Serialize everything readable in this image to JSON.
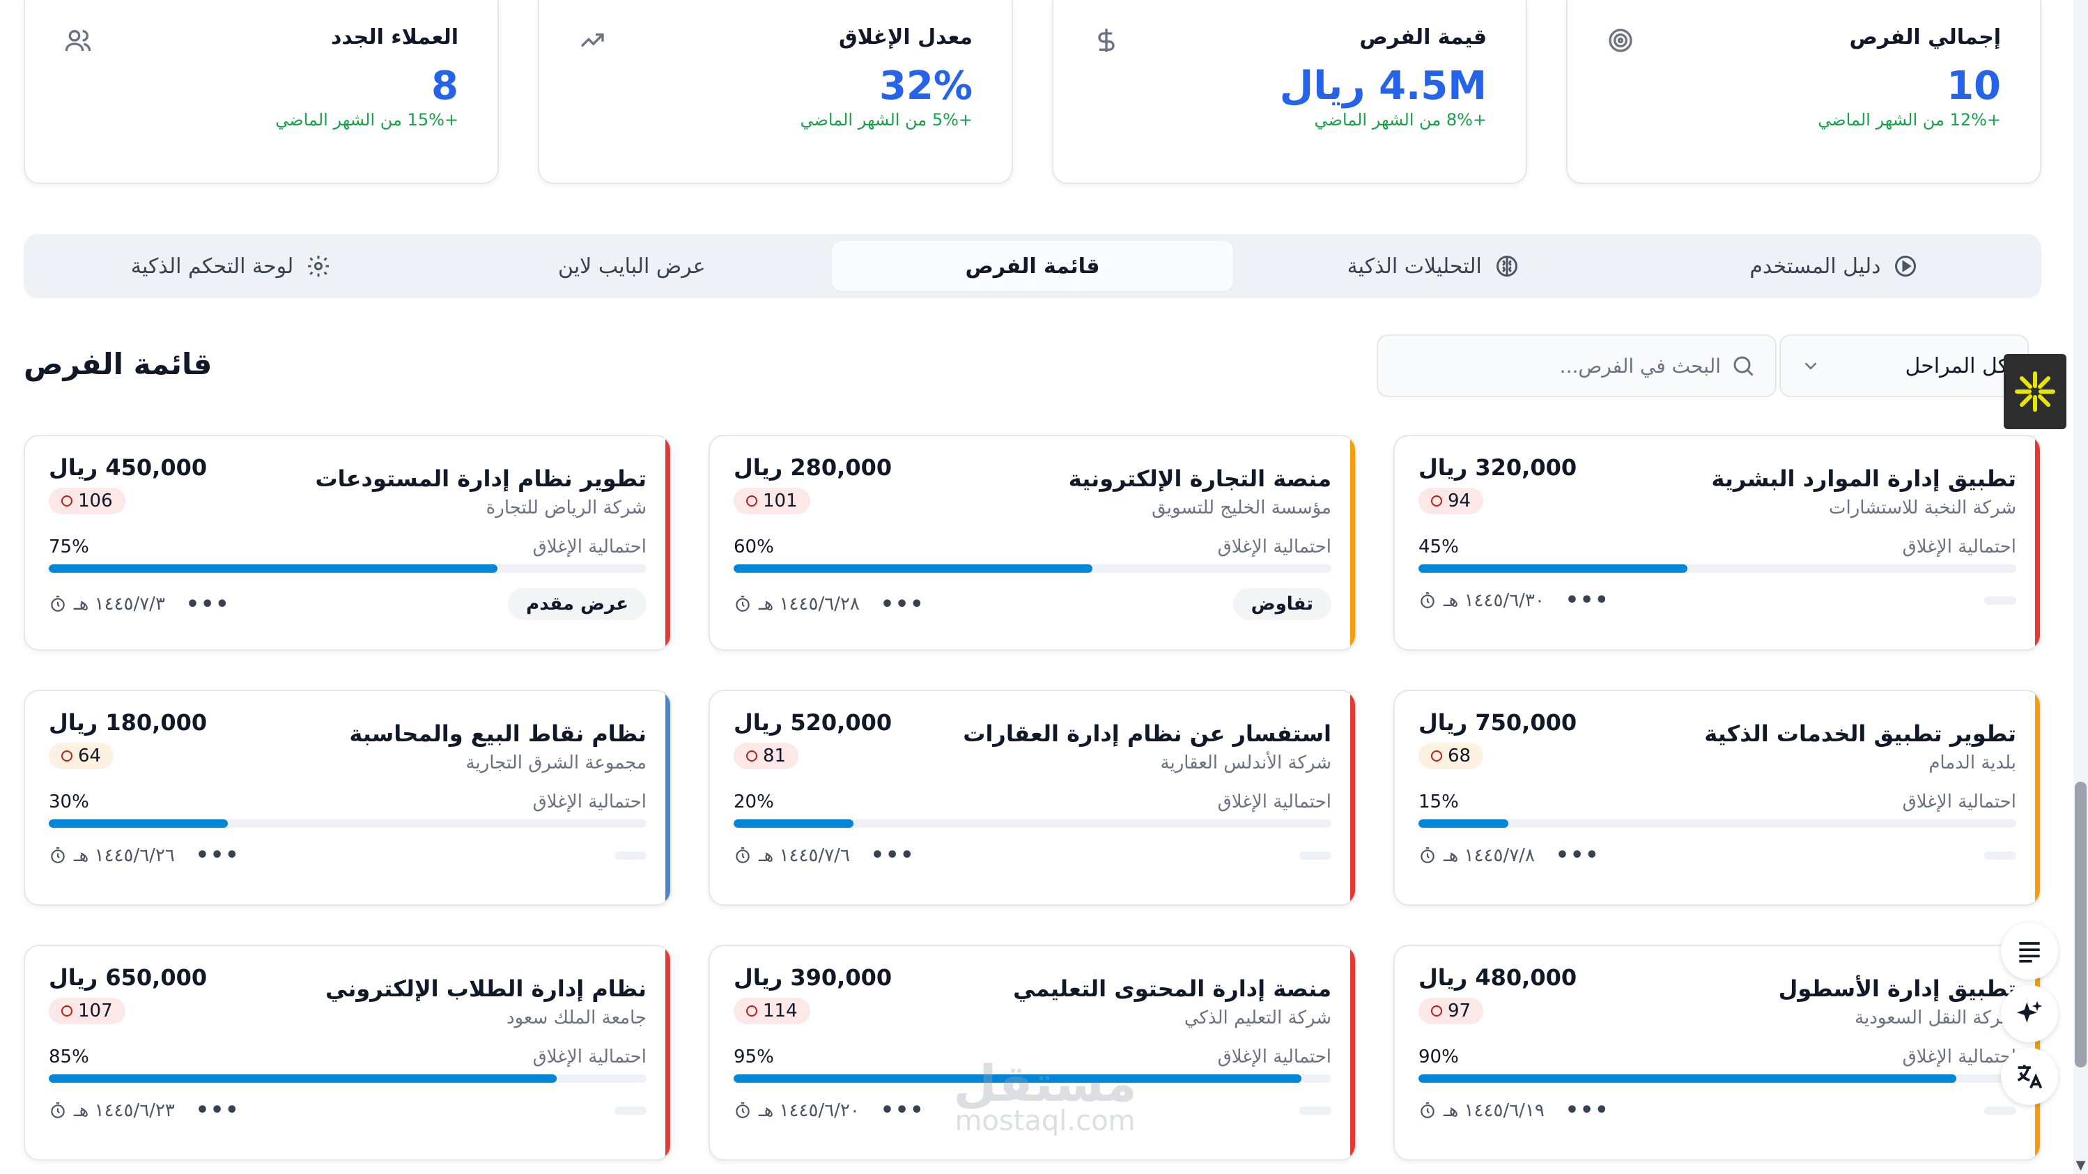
{
  "stats": [
    {
      "title": "إجمالي الفرص",
      "value": "10",
      "change": "+12% من الشهر الماضي",
      "icon": "target-icon"
    },
    {
      "title": "قيمة الفرص",
      "value": "4.5M ريال",
      "change": "+8% من الشهر الماضي",
      "icon": "dollar-icon"
    },
    {
      "title": "معدل الإغلاق",
      "value": "32%",
      "change": "+5% من الشهر الماضي",
      "icon": "trending-up-icon"
    },
    {
      "title": "العملاء الجدد",
      "value": "8",
      "change": "+15% من الشهر الماضي",
      "icon": "users-icon"
    }
  ],
  "tabs": [
    {
      "label": "دليل المستخدم",
      "icon": "play-circle-icon",
      "active": false
    },
    {
      "label": "التحليلات الذكية",
      "icon": "brain-icon",
      "active": false
    },
    {
      "label": "قائمة الفرص",
      "icon": "",
      "active": true
    },
    {
      "label": "عرض البايب لاين",
      "icon": "",
      "active": false
    },
    {
      "label": "لوحة التحكم الذكية",
      "icon": "gear-icon",
      "active": false
    }
  ],
  "section": {
    "title": "قائمة الفرص",
    "search_placeholder": "البحث في الفرص...",
    "stage_filter": "كل المراحل"
  },
  "labels": {
    "probability": "احتمالية الإغلاق"
  },
  "opportunities": [
    {
      "title": "تطبيق إدارة الموارد البشرية",
      "company": "شركة النخبة للاستشارات",
      "value": "320,000 ريال",
      "score": "94",
      "probability": "45%",
      "progress": 45,
      "date": "١٤٤٥/٦/٣٠ هـ",
      "stage": "",
      "stripe": "#e53935",
      "score_tone": "red"
    },
    {
      "title": "منصة التجارة الإلكترونية",
      "company": "مؤسسة الخليج للتسويق",
      "value": "280,000 ريال",
      "score": "101",
      "probability": "60%",
      "progress": 60,
      "date": "١٤٤٥/٦/٢٨ هـ",
      "stage": "تفاوض",
      "stripe": "#f59e0b",
      "score_tone": "red"
    },
    {
      "title": "تطوير نظام إدارة المستودعات",
      "company": "شركة الرياض للتجارة",
      "value": "450,000 ريال",
      "score": "106",
      "probability": "75%",
      "progress": 75,
      "date": "١٤٤٥/٧/٣ هـ",
      "stage": "عرض مقدم",
      "stripe": "#e53935",
      "score_tone": "red"
    },
    {
      "title": "تطوير تطبيق الخدمات الذكية",
      "company": "بلدية الدمام",
      "value": "750,000 ريال",
      "score": "68",
      "probability": "15%",
      "progress": 15,
      "date": "١٤٤٥/٧/٨ هـ",
      "stage": "",
      "stripe": "#f59e0b",
      "score_tone": "amber"
    },
    {
      "title": "استفسار عن نظام إدارة العقارات",
      "company": "شركة الأندلس العقارية",
      "value": "520,000 ريال",
      "score": "81",
      "probability": "20%",
      "progress": 20,
      "date": "١٤٤٥/٧/٦ هـ",
      "stage": "",
      "stripe": "#e53935",
      "score_tone": "red"
    },
    {
      "title": "نظام نقاط البيع والمحاسبة",
      "company": "مجموعة الشرق التجارية",
      "value": "180,000 ريال",
      "score": "64",
      "probability": "30%",
      "progress": 30,
      "date": "١٤٤٥/٦/٢٦ هـ",
      "stage": "",
      "stripe": "#4a86c8",
      "score_tone": "amber"
    },
    {
      "title": "تطبيق إدارة الأسطول",
      "company": "شركة النقل السعودية",
      "value": "480,000 ريال",
      "score": "97",
      "probability": "90%",
      "progress": 90,
      "date": "١٤٤٥/٦/١٩ هـ",
      "stage": "",
      "stripe": "#f59e0b",
      "score_tone": "red"
    },
    {
      "title": "منصة إدارة المحتوى التعليمي",
      "company": "شركة التعليم الذكي",
      "value": "390,000 ريال",
      "score": "114",
      "probability": "95%",
      "progress": 95,
      "date": "١٤٤٥/٦/٢٠ هـ",
      "stage": "",
      "stripe": "#e53935",
      "score_tone": "red"
    },
    {
      "title": "نظام إدارة الطلاب الإلكتروني",
      "company": "جامعة الملك سعود",
      "value": "650,000 ريال",
      "score": "107",
      "probability": "85%",
      "progress": 85,
      "date": "١٤٤٥/٦/٢٣ هـ",
      "stage": "",
      "stripe": "#e53935",
      "score_tone": "red"
    }
  ],
  "watermark": {
    "text": "mostaql.com"
  },
  "colors": {
    "accent": "#2563eb",
    "positive": "#16a34a",
    "progress": "#0086d9",
    "tab_bg": "#eef2f6"
  }
}
